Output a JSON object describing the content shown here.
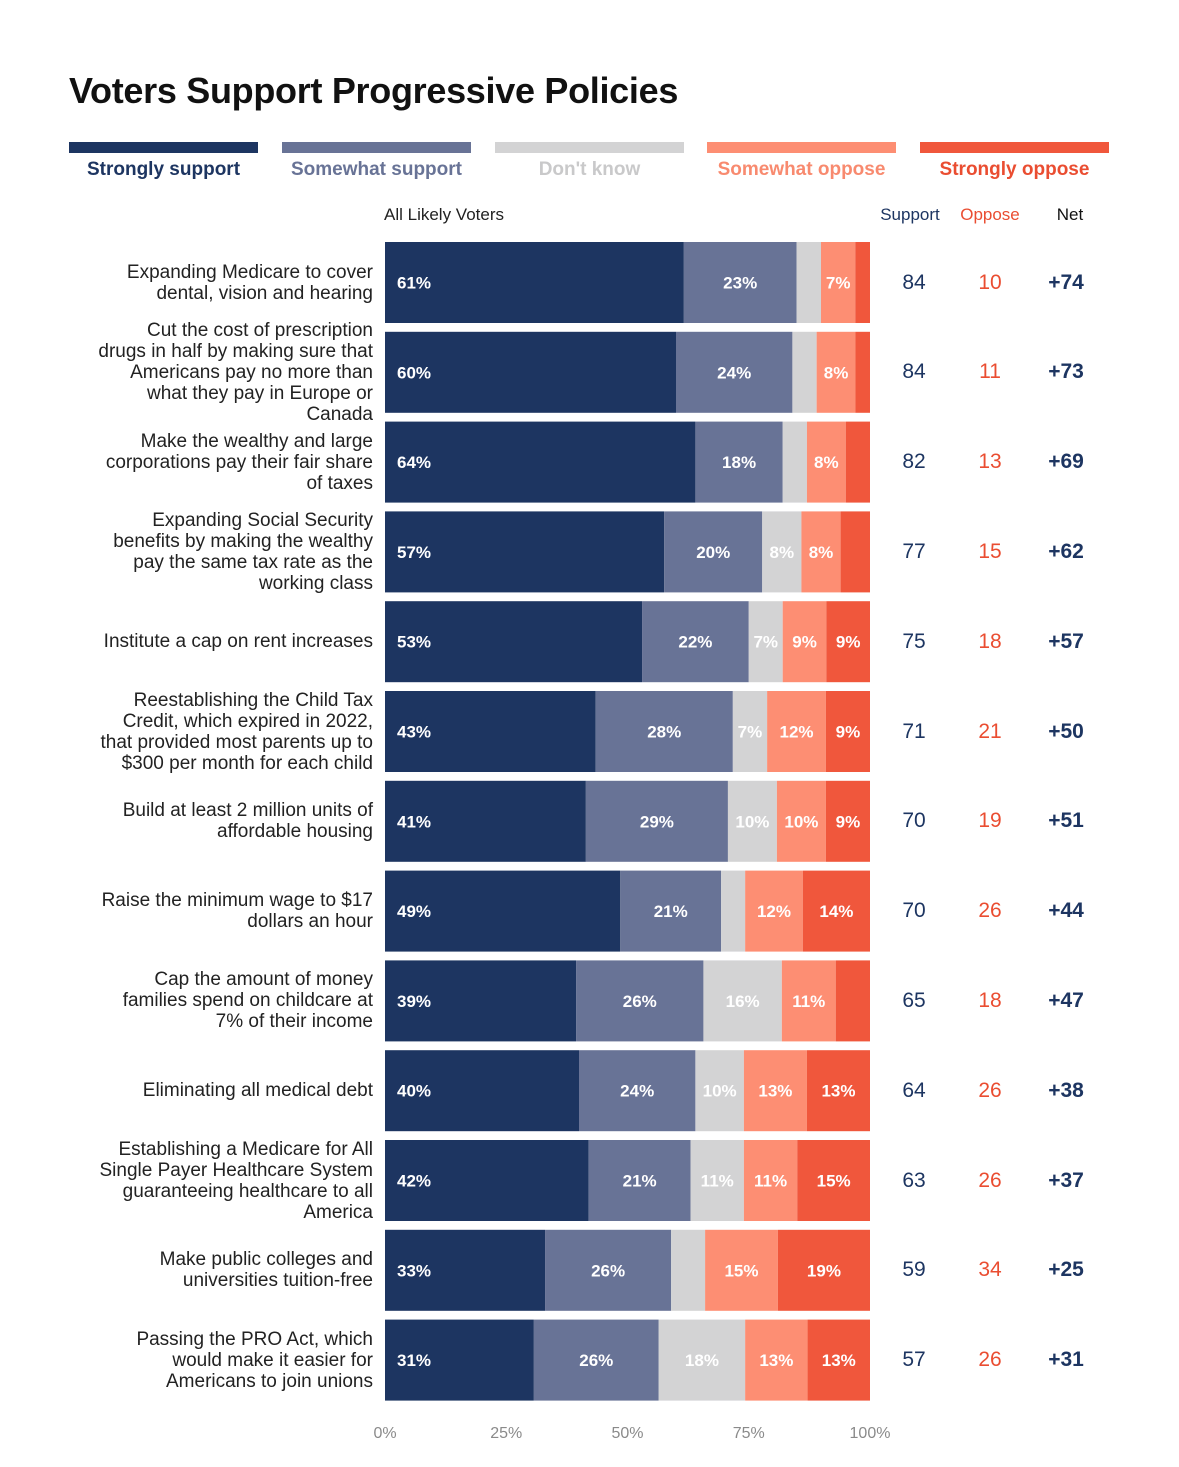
{
  "title": "Voters Support Progressive Policies",
  "legend": [
    {
      "label": "Strongly support",
      "color": "#1d3561",
      "text_color": "#1d3561"
    },
    {
      "label": "Somewhat support",
      "color": "#687396",
      "text_color": "#687396"
    },
    {
      "label": "Don't know",
      "color": "#d3d3d4",
      "text_color": "#c9c9ca"
    },
    {
      "label": "Somewhat oppose",
      "color": "#fd8e73",
      "text_color": "#f88a6f"
    },
    {
      "label": "Strongly oppose",
      "color": "#f0573c",
      "text_color": "#ea4d31"
    }
  ],
  "headers": {
    "group": "All Likely Voters",
    "support": "Support",
    "oppose": "Oppose",
    "net": "Net"
  },
  "chart_data": {
    "type": "bar",
    "orientation": "horizontal-stacked-100",
    "segments": [
      "Strongly support",
      "Somewhat support",
      "Don't know",
      "Somewhat oppose",
      "Strongly oppose"
    ],
    "x_ticks": [
      "0%",
      "25%",
      "50%",
      "75%",
      "100%"
    ],
    "xlim": [
      0,
      100
    ],
    "rows": [
      {
        "label": [
          "Expanding Medicare to cover",
          "dental, vision and hearing"
        ],
        "values": [
          61,
          23,
          5,
          7,
          3
        ],
        "labels": [
          "61%",
          "23%",
          "",
          "7%",
          ""
        ],
        "support": "84",
        "oppose": "10",
        "net": "+74"
      },
      {
        "label": [
          "Cut the cost of prescription",
          "drugs in half by making sure that",
          "Americans pay no more than",
          "what they pay in Europe or",
          "Canada"
        ],
        "values": [
          60,
          24,
          5,
          8,
          3
        ],
        "labels": [
          "60%",
          "24%",
          "",
          "8%",
          ""
        ],
        "support": "84",
        "oppose": "11",
        "net": "+73"
      },
      {
        "label": [
          "Make the wealthy and large",
          "corporations pay their fair share",
          "of taxes"
        ],
        "values": [
          64,
          18,
          5,
          8,
          5
        ],
        "labels": [
          "64%",
          "18%",
          "",
          "8%",
          ""
        ],
        "support": "82",
        "oppose": "13",
        "net": "+69"
      },
      {
        "label": [
          "Expanding Social Security",
          "benefits by making the wealthy",
          "pay the same tax rate as the",
          "working class"
        ],
        "values": [
          57,
          20,
          8,
          8,
          6
        ],
        "labels": [
          "57%",
          "20%",
          "8%",
          "8%",
          ""
        ],
        "support": "77",
        "oppose": "15",
        "net": "+62"
      },
      {
        "label": [
          "Institute a cap on rent increases"
        ],
        "values": [
          53,
          22,
          7,
          9,
          9
        ],
        "labels": [
          "53%",
          "22%",
          "7%",
          "9%",
          "9%"
        ],
        "support": "75",
        "oppose": "18",
        "net": "+57"
      },
      {
        "label": [
          "Reestablishing the Child Tax",
          "Credit, which expired in 2022,",
          "that provided most parents up to",
          "$300 per month for each child"
        ],
        "values": [
          43,
          28,
          7,
          12,
          9
        ],
        "labels": [
          "43%",
          "28%",
          "7%",
          "12%",
          "9%"
        ],
        "support": "71",
        "oppose": "21",
        "net": "+50"
      },
      {
        "label": [
          "Build at least 2 million units of",
          "affordable housing"
        ],
        "values": [
          41,
          29,
          10,
          10,
          9
        ],
        "labels": [
          "41%",
          "29%",
          "10%",
          "10%",
          "9%"
        ],
        "support": "70",
        "oppose": "19",
        "net": "+51"
      },
      {
        "label": [
          "Raise the minimum wage to $17",
          "dollars an hour"
        ],
        "values": [
          49,
          21,
          5,
          12,
          14
        ],
        "labels": [
          "49%",
          "21%",
          "",
          "12%",
          "14%"
        ],
        "support": "70",
        "oppose": "26",
        "net": "+44"
      },
      {
        "label": [
          "Cap the amount of money",
          "families spend on childcare at",
          "7% of their income"
        ],
        "values": [
          39,
          26,
          16,
          11,
          7
        ],
        "labels": [
          "39%",
          "26%",
          "16%",
          "11%",
          ""
        ],
        "support": "65",
        "oppose": "18",
        "net": "+47"
      },
      {
        "label": [
          "Eliminating all medical debt"
        ],
        "values": [
          40,
          24,
          10,
          13,
          13
        ],
        "labels": [
          "40%",
          "24%",
          "10%",
          "13%",
          "13%"
        ],
        "support": "64",
        "oppose": "26",
        "net": "+38"
      },
      {
        "label": [
          "Establishing a Medicare for All",
          "Single Payer Healthcare System",
          "guaranteeing healthcare to all",
          "America"
        ],
        "values": [
          42,
          21,
          11,
          11,
          15
        ],
        "labels": [
          "42%",
          "21%",
          "11%",
          "11%",
          "15%"
        ],
        "support": "63",
        "oppose": "26",
        "net": "+37"
      },
      {
        "label": [
          "Make public colleges and",
          "universities tuition-free"
        ],
        "values": [
          33,
          26,
          7,
          15,
          19
        ],
        "labels": [
          "33%",
          "26%",
          "",
          "15%",
          "19%"
        ],
        "support": "59",
        "oppose": "34",
        "net": "+25"
      },
      {
        "label": [
          "Passing the PRO Act, which",
          "would make it easier for",
          "Americans to join unions"
        ],
        "values": [
          31,
          26,
          18,
          13,
          13
        ],
        "labels": [
          "31%",
          "26%",
          "18%",
          "13%",
          "13%"
        ],
        "support": "57",
        "oppose": "26",
        "net": "+31"
      }
    ]
  }
}
